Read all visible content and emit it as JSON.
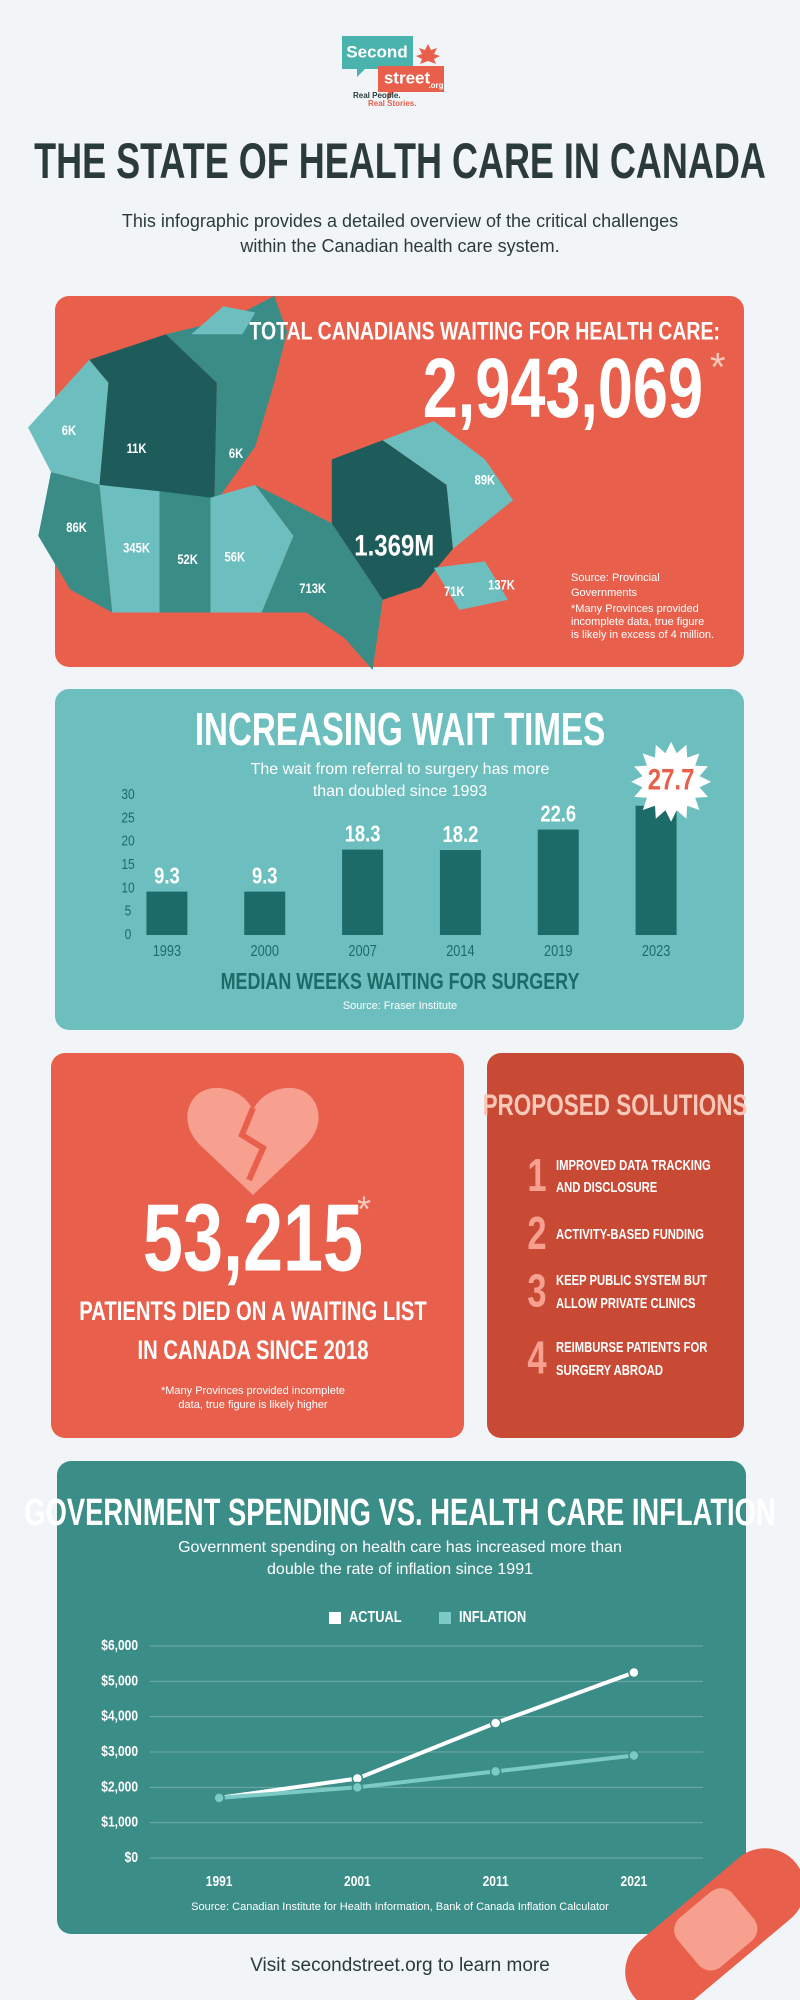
{
  "header": {
    "logo": {
      "word1": "Second",
      "word2": "street",
      "domain": ".org",
      "tagline1": "Real People.",
      "tagline2": "Real Stories."
    },
    "title": "THE STATE OF HEALTH CARE IN CANADA",
    "subtitle": [
      "This infographic provides a detailed overview of the critical challenges",
      "within the Canadian health care system."
    ]
  },
  "waiting": {
    "heading": "TOTAL CANADIANS WAITING FOR HEALTH CARE:",
    "total": "2,943,069",
    "footnote_mark": "*",
    "source": [
      "Source: Provincial",
      "Governments",
      "*Many Provinces provided",
      "incomplete data, true figure",
      "is likely in excess of 4 million."
    ],
    "map_labels": [
      "6K",
      "11K",
      "6K",
      "86K",
      "345K",
      "52K",
      "56K",
      "713K",
      "1.369M",
      "89K",
      "71K",
      "137K"
    ]
  },
  "deaths": {
    "count": "53,215",
    "footnote_mark": "*",
    "caption": [
      "PATIENTS DIED ON A WAITING LIST",
      "IN CANADA SINCE 2018"
    ],
    "note": [
      "*Many Provinces provided incomplete",
      "data, true figure is likely higher"
    ]
  },
  "solutions": {
    "heading": "PROPOSED SOLUTIONS",
    "items": [
      {
        "number": 1,
        "text": [
          "IMPROVED DATA TRACKING",
          "AND DISCLOSURE"
        ]
      },
      {
        "number": 2,
        "text": [
          "ACTIVITY-BASED FUNDING"
        ]
      },
      {
        "number": 3,
        "text": [
          "KEEP PUBLIC SYSTEM BUT",
          "ALLOW PRIVATE CLINICS"
        ]
      },
      {
        "number": 4,
        "text": [
          "REIMBURSE PATIENTS FOR",
          "SURGERY ABROAD"
        ]
      }
    ]
  },
  "footer": "Visit secondstreet.org to learn more",
  "chart_data": [
    {
      "type": "bar",
      "title": "INCREASING WAIT TIMES",
      "subtitle": [
        "The wait from referral to surgery has more",
        "than doubled since 1993"
      ],
      "x_label": "MEDIAN WEEKS WAITING FOR SURGERY",
      "source": "Source: Fraser Institute",
      "categories": [
        "1993",
        "2000",
        "2007",
        "2014",
        "2019",
        "2023"
      ],
      "values": [
        9.3,
        9.3,
        18.3,
        18.2,
        22.6,
        27.7
      ],
      "color": "#1d6b69",
      "highlight_color": "#e8604c",
      "ylim": [
        0,
        30
      ],
      "yticks": [
        0,
        5,
        10,
        15,
        20,
        25,
        30
      ],
      "grid": false
    },
    {
      "type": "line",
      "title": "GOVERNMENT SPENDING VS. HEALTH CARE INFLATION",
      "subtitle": [
        "Government spending on health care has increased more than",
        "double the rate of inflation since 1991"
      ],
      "source": "Source: Canadian Institute for Health Information, Bank of Canada Inflation Calculator",
      "x": [
        1991,
        2001,
        2011,
        2021
      ],
      "xlim": [
        1986,
        2026
      ],
      "xticks": [
        1991,
        2001,
        2011,
        2021
      ],
      "series": [
        {
          "name": "ACTUAL",
          "color": "#ffffff",
          "values": [
            1700,
            2250,
            3820,
            5250
          ]
        },
        {
          "name": "INFLATION",
          "color": "#7ccac5",
          "values": [
            1700,
            2000,
            2450,
            2900
          ]
        }
      ],
      "ylim": [
        0,
        6000
      ],
      "yticks": [
        {
          "value": 0,
          "label": "$0"
        },
        {
          "value": 1000,
          "label": "$1,000"
        },
        {
          "value": 2000,
          "label": "$2,000"
        },
        {
          "value": 3000,
          "label": "$3,000"
        },
        {
          "value": 4000,
          "label": "$4,000"
        },
        {
          "value": 5000,
          "label": "$5,000"
        },
        {
          "value": 6000,
          "label": "$6,000"
        }
      ],
      "grid": true,
      "legend": "top"
    }
  ]
}
